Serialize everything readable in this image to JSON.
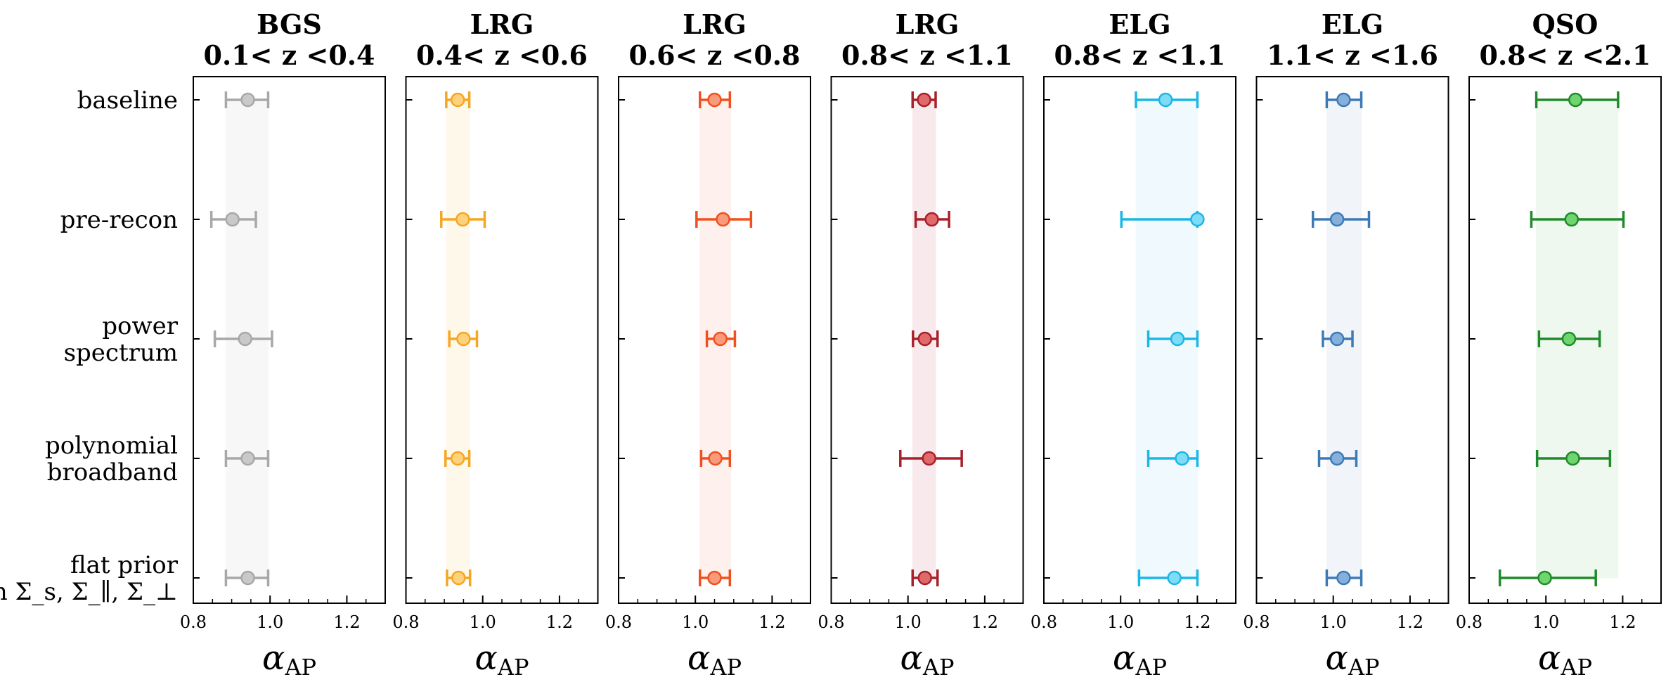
{
  "chart_data": {
    "type": "scatter",
    "subtype": "forest-plot-with-error-bars",
    "xlabel_main": "α",
    "xlabel_sub": "AP",
    "xlim": [
      0.8,
      1.3
    ],
    "xticks": [
      0.8,
      1.0,
      1.2
    ],
    "xtick_labels": [
      "0.8",
      "1.0",
      "1.2"
    ],
    "minor_tick_step": 0.05,
    "rows": [
      {
        "label_lines": [
          "baseline"
        ]
      },
      {
        "label_lines": [
          "pre-recon"
        ]
      },
      {
        "label_lines": [
          "power",
          "spectrum"
        ]
      },
      {
        "label_lines": [
          "polynomial",
          "broadband"
        ]
      },
      {
        "label_lines": [
          "flat prior",
          "on Σ_s, Σ_∥, Σ_⊥"
        ]
      }
    ],
    "panels": [
      {
        "name": "BGS",
        "range_label": "0.1< z <0.4",
        "line_color": "#a8a8a8",
        "fill_color": "#c9c9c9",
        "band": [
          0.885,
          0.995
        ],
        "band_color": "#f7f7f7",
        "points": [
          {
            "value": 0.942,
            "lo": 0.885,
            "hi": 0.995
          },
          {
            "value": 0.902,
            "lo": 0.847,
            "hi": 0.963
          },
          {
            "value": 0.935,
            "lo": 0.856,
            "hi": 1.005
          },
          {
            "value": 0.942,
            "lo": 0.885,
            "hi": 0.995
          },
          {
            "value": 0.942,
            "lo": 0.885,
            "hi": 0.995
          }
        ]
      },
      {
        "name": "LRG",
        "range_label": "0.4< z <0.6",
        "line_color": "#f5a623",
        "fill_color": "#fdd27a",
        "band": [
          0.905,
          0.965
        ],
        "band_color": "#fef8ea",
        "points": [
          {
            "value": 0.935,
            "lo": 0.905,
            "hi": 0.965
          },
          {
            "value": 0.948,
            "lo": 0.892,
            "hi": 1.005
          },
          {
            "value": 0.95,
            "lo": 0.913,
            "hi": 0.985
          },
          {
            "value": 0.935,
            "lo": 0.903,
            "hi": 0.965
          },
          {
            "value": 0.937,
            "lo": 0.907,
            "hi": 0.967
          }
        ]
      },
      {
        "name": "LRG",
        "range_label": "0.6< z <0.8",
        "line_color": "#f0501e",
        "fill_color": "#f99a7a",
        "band": [
          1.012,
          1.092
        ],
        "band_color": "#fef1ed",
        "points": [
          {
            "value": 1.05,
            "lo": 1.012,
            "hi": 1.09
          },
          {
            "value": 1.072,
            "lo": 1.003,
            "hi": 1.145
          },
          {
            "value": 1.065,
            "lo": 1.03,
            "hi": 1.103
          },
          {
            "value": 1.052,
            "lo": 1.015,
            "hi": 1.09
          },
          {
            "value": 1.05,
            "lo": 1.012,
            "hi": 1.09
          }
        ]
      },
      {
        "name": "LRG",
        "range_label": "0.8< z <1.1",
        "line_color": "#a8202a",
        "fill_color": "#e06a6a",
        "band": [
          1.012,
          1.072
        ],
        "band_color": "#f8e9ec",
        "points": [
          {
            "value": 1.042,
            "lo": 1.012,
            "hi": 1.072
          },
          {
            "value": 1.062,
            "lo": 1.02,
            "hi": 1.107
          },
          {
            "value": 1.044,
            "lo": 1.013,
            "hi": 1.077
          },
          {
            "value": 1.055,
            "lo": 0.98,
            "hi": 1.14
          },
          {
            "value": 1.044,
            "lo": 1.012,
            "hi": 1.077
          }
        ]
      },
      {
        "name": "ELG",
        "range_label": "0.8< z <1.1",
        "line_color": "#1ab7e6",
        "fill_color": "#7fdcf7",
        "band": [
          1.04,
          1.2
        ],
        "band_color": "#f0f9fe",
        "points": [
          {
            "value": 1.117,
            "lo": 1.04,
            "hi": 1.2
          },
          {
            "value": 1.2,
            "lo": 1.002,
            "hi": 1.2
          },
          {
            "value": 1.148,
            "lo": 1.072,
            "hi": 1.2
          },
          {
            "value": 1.16,
            "lo": 1.072,
            "hi": 1.2
          },
          {
            "value": 1.14,
            "lo": 1.048,
            "hi": 1.2
          }
        ]
      },
      {
        "name": "ELG",
        "range_label": "1.1< z <1.6",
        "line_color": "#3d7ab5",
        "fill_color": "#86b0dc",
        "band": [
          0.983,
          1.073
        ],
        "band_color": "#f1f5fa",
        "points": [
          {
            "value": 1.027,
            "lo": 0.983,
            "hi": 1.073
          },
          {
            "value": 1.01,
            "lo": 0.947,
            "hi": 1.093
          },
          {
            "value": 1.01,
            "lo": 0.973,
            "hi": 1.05
          },
          {
            "value": 1.01,
            "lo": 0.963,
            "hi": 1.06
          },
          {
            "value": 1.027,
            "lo": 0.983,
            "hi": 1.073
          }
        ]
      },
      {
        "name": "QSO",
        "range_label": "0.8< z <2.1",
        "line_color": "#1f8a2a",
        "fill_color": "#6fd66f",
        "band": [
          0.975,
          1.188
        ],
        "band_color": "#eef8ee",
        "points": [
          {
            "value": 1.077,
            "lo": 0.975,
            "hi": 1.188
          },
          {
            "value": 1.067,
            "lo": 0.962,
            "hi": 1.202
          },
          {
            "value": 1.06,
            "lo": 0.982,
            "hi": 1.14
          },
          {
            "value": 1.07,
            "lo": 0.977,
            "hi": 1.167
          },
          {
            "value": 0.997,
            "lo": 0.88,
            "hi": 1.13
          }
        ]
      }
    ]
  }
}
